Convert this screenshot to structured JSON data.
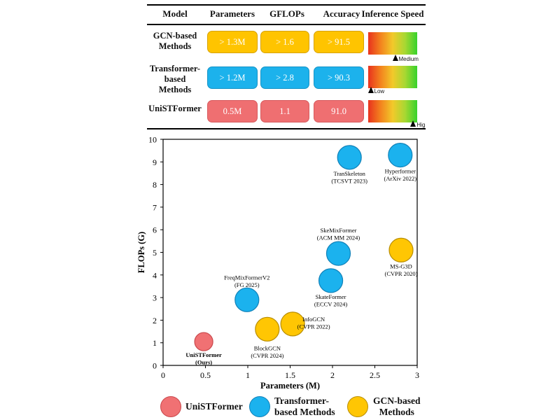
{
  "table": {
    "headers": [
      "Model",
      "Parameters",
      "GFLOPs",
      "Accuracy",
      "Inference Speed"
    ],
    "rows": [
      {
        "label_lines": [
          "GCN-based",
          "Methods"
        ],
        "params": "> 1.3M",
        "gflops": "> 1.6",
        "accuracy": "> 91.5",
        "speed": "Medium",
        "speed_level": 0.55
      },
      {
        "label_lines": [
          "Transformer-",
          "based Methods"
        ],
        "params": "> 1.2M",
        "gflops": "> 2.8",
        "accuracy": "> 90.3",
        "speed": "Low",
        "speed_level": 0.05
      },
      {
        "label_lines": [
          "UniSTFormer"
        ],
        "params": "0.5M",
        "gflops": "1.1",
        "accuracy": "91.0",
        "speed": "High",
        "speed_level": 0.92
      }
    ]
  },
  "chart_data": {
    "type": "scatter",
    "xlabel": "Parameters (M)",
    "ylabel": "FLOPs (G)",
    "xlim": [
      0,
      3
    ],
    "ylim": [
      0,
      10
    ],
    "xticks": [
      "0",
      "0.5",
      "1",
      "1.5",
      "2",
      "2.5",
      "3"
    ],
    "yticks": [
      "0",
      "1",
      "2",
      "3",
      "4",
      "5",
      "6",
      "7",
      "8",
      "9",
      "10"
    ],
    "grid": false,
    "legend": "bottom",
    "series": [
      {
        "name": "UniSTFormer",
        "color": "#f07173",
        "stroke": "#c9484c",
        "points": [
          {
            "x": 0.48,
            "y": 1.05,
            "label": [
              "UniSTFormer",
              "(Ours)"
            ],
            "bold": true
          }
        ]
      },
      {
        "name": "Transformer-based Methods",
        "color": "#1bb2ee",
        "stroke": "#1281b8",
        "points": [
          {
            "x": 2.2,
            "y": 9.2,
            "label": [
              "TranSkeleton",
              "(TCSVT 2023)"
            ]
          },
          {
            "x": 2.8,
            "y": 9.3,
            "label": [
              "Hyperformer",
              "(ArXiv 2022)"
            ]
          },
          {
            "x": 2.07,
            "y": 4.95,
            "label": [
              "SkeMixFormer",
              "(ACM MM 2024)"
            ]
          },
          {
            "x": 1.98,
            "y": 3.75,
            "label": [
              "SkateFormer",
              "(ECCV 2024)"
            ]
          },
          {
            "x": 0.99,
            "y": 2.9,
            "label": [
              "FreqMixFormerV2",
              "(FG 2025)"
            ]
          }
        ]
      },
      {
        "name": "GCN-based Methods",
        "color": "#ffc603",
        "stroke": "#b88d00",
        "points": [
          {
            "x": 2.81,
            "y": 5.1,
            "label": [
              "MS-G3D",
              "(CVPR 2020)"
            ]
          },
          {
            "x": 1.53,
            "y": 1.83,
            "label": [
              "InfoGCN",
              "(CVPR 2022)"
            ]
          },
          {
            "x": 1.23,
            "y": 1.6,
            "label": [
              "BlockGCN",
              "(CVPR 2024)"
            ]
          }
        ]
      }
    ]
  },
  "legend": [
    {
      "lines": [
        "UniSTFormer"
      ],
      "color": "#f07173",
      "stroke": "#c9484c"
    },
    {
      "lines": [
        "Transformer-",
        "based Methods"
      ],
      "color": "#1bb2ee",
      "stroke": "#1281b8"
    },
    {
      "lines": [
        "GCN-based",
        "Methods"
      ],
      "color": "#ffc603",
      "stroke": "#b88d00"
    }
  ]
}
